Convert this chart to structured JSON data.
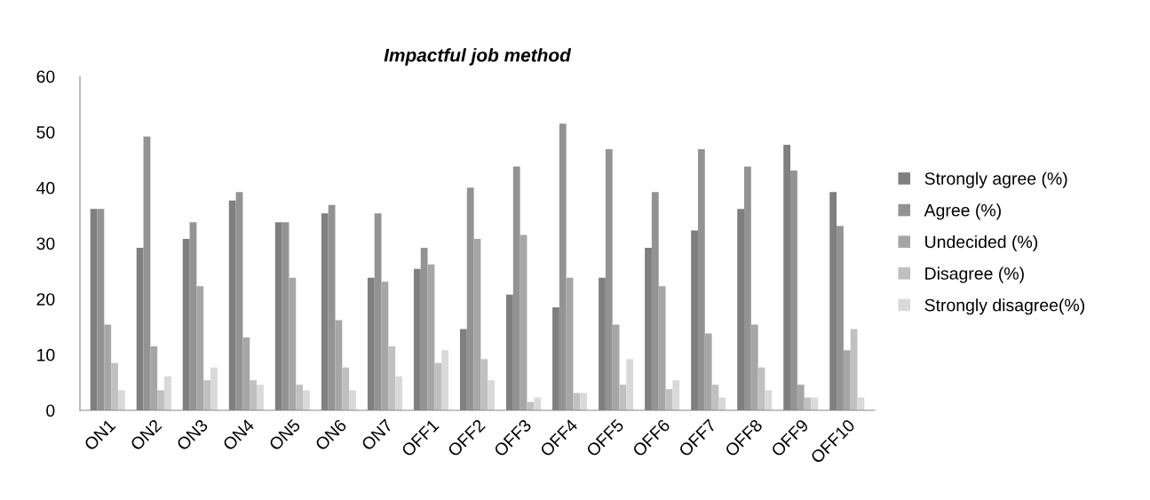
{
  "chart_data": {
    "type": "bar",
    "title": "Impactful job method",
    "categories": [
      "ON1",
      "ON2",
      "ON3",
      "ON4",
      "ON5",
      "ON6",
      "ON7",
      "OFF1",
      "OFF2",
      "OFF3",
      "OFF4",
      "OFF5",
      "OFF6",
      "OFF7",
      "OFF8",
      "OFF9",
      "OFF10"
    ],
    "series": [
      {
        "name": "Strongly agree (%)",
        "color": "#7f7f7f",
        "values": [
          36.2,
          29.2,
          30.8,
          37.7,
          33.8,
          35.4,
          23.8,
          25.4,
          14.6,
          20.8,
          18.5,
          23.8,
          29.2,
          32.3,
          36.2,
          47.7,
          39.2
        ]
      },
      {
        "name": "Agree (%)",
        "color": "#939393",
        "values": [
          36.2,
          49.2,
          33.8,
          39.2,
          33.8,
          36.9,
          35.4,
          29.2,
          40.0,
          43.8,
          51.5,
          46.9,
          39.2,
          46.9,
          43.8,
          43.1,
          33.1
        ]
      },
      {
        "name": "Undecided (%)",
        "color": "#a6a6a6",
        "values": [
          15.4,
          11.5,
          22.3,
          13.1,
          23.8,
          16.2,
          23.1,
          26.2,
          30.8,
          31.5,
          23.8,
          15.4,
          22.3,
          13.8,
          15.4,
          4.6,
          10.8
        ]
      },
      {
        "name": "Disagree (%)",
        "color": "#c0c0c0",
        "values": [
          8.5,
          3.6,
          5.4,
          5.4,
          4.6,
          7.7,
          11.5,
          8.5,
          9.2,
          1.5,
          3.1,
          4.6,
          3.8,
          4.6,
          7.7,
          2.3,
          14.6
        ]
      },
      {
        "name": "Strongly disagree(%)",
        "color": "#d9d9d9",
        "values": [
          3.6,
          6.1,
          7.7,
          4.6,
          3.6,
          3.6,
          6.1,
          10.8,
          5.4,
          2.3,
          3.1,
          9.2,
          5.4,
          2.3,
          3.6,
          2.3,
          2.3
        ]
      }
    ],
    "ylim": [
      0,
      60
    ],
    "yticks": [
      0,
      10,
      20,
      30,
      40,
      50,
      60
    ],
    "grid": false,
    "legend": "right"
  }
}
